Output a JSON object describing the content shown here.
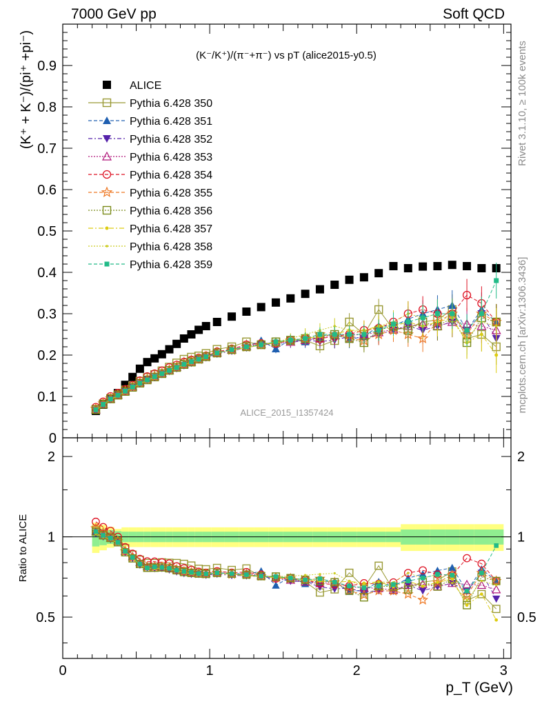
{
  "header": {
    "left": "7000 GeV pp",
    "right": "Soft QCD"
  },
  "side_labels": {
    "rivet": "Rivet 3.1.10, ≥ 100k events",
    "mcplots": "mcplots.cern.ch [arXiv:1306.3436]"
  },
  "chart_data": {
    "type": "scatter",
    "title": "(K⁻/K⁺)/(π⁻+π⁻) vs pT (alice2015-y0.5)",
    "watermark": "ALICE_2015_I1357424",
    "xlabel": "p_T (GeV)",
    "ylabel": "(K⁺ + K⁻)/(pi⁺ +pi⁻)",
    "ratio_ylabel": "Ratio to ALICE",
    "xlim": [
      0,
      3.05
    ],
    "ylim": [
      0,
      1.0
    ],
    "ratio_ylim": [
      0.35,
      2.35
    ],
    "x_ticks": [
      0,
      1,
      2,
      3
    ],
    "y_ticks": [
      0,
      0.1,
      0.2,
      0.3,
      0.4,
      0.5,
      0.6,
      0.7,
      0.8,
      0.9
    ],
    "ratio_ticks": [
      0.5,
      1,
      2
    ],
    "x": [
      0.225,
      0.275,
      0.325,
      0.375,
      0.425,
      0.475,
      0.525,
      0.575,
      0.625,
      0.675,
      0.725,
      0.775,
      0.825,
      0.875,
      0.925,
      0.975,
      1.05,
      1.15,
      1.25,
      1.35,
      1.45,
      1.55,
      1.65,
      1.75,
      1.85,
      1.95,
      2.05,
      2.15,
      2.25,
      2.35,
      2.45,
      2.55,
      2.65,
      2.75,
      2.85,
      2.95
    ],
    "series": [
      {
        "name": "ALICE",
        "values": [
          0.065,
          0.08,
          0.095,
          0.108,
          0.128,
          0.147,
          0.167,
          0.183,
          0.192,
          0.202,
          0.214,
          0.227,
          0.24,
          0.25,
          0.261,
          0.27,
          0.28,
          0.293,
          0.305,
          0.316,
          0.327,
          0.337,
          0.348,
          0.359,
          0.37,
          0.382,
          0.388,
          0.398,
          0.415,
          0.41,
          0.414,
          0.415,
          0.418,
          0.415,
          0.41,
          0.41
        ]
      },
      {
        "name": "Pythia 6.428 350",
        "values": [
          0.069,
          0.082,
          0.095,
          0.104,
          0.116,
          0.126,
          0.137,
          0.146,
          0.153,
          0.162,
          0.171,
          0.181,
          0.19,
          0.195,
          0.198,
          0.204,
          0.214,
          0.22,
          0.232,
          0.225,
          0.232,
          0.235,
          0.236,
          0.222,
          0.235,
          0.28,
          0.25,
          0.31,
          0.262,
          0.265,
          0.28,
          0.285,
          0.31,
          0.24,
          0.25,
          0.22
        ]
      },
      {
        "name": "Pythia 6.428 351",
        "values": [
          0.068,
          0.082,
          0.096,
          0.105,
          0.114,
          0.124,
          0.133,
          0.141,
          0.148,
          0.155,
          0.163,
          0.171,
          0.178,
          0.184,
          0.192,
          0.197,
          0.205,
          0.214,
          0.22,
          0.235,
          0.215,
          0.238,
          0.232,
          0.246,
          0.25,
          0.238,
          0.245,
          0.27,
          0.27,
          0.287,
          0.3,
          0.31,
          0.32,
          0.26,
          0.31,
          0.28
        ]
      },
      {
        "name": "Pythia 6.428 352",
        "values": [
          0.067,
          0.08,
          0.093,
          0.103,
          0.112,
          0.122,
          0.131,
          0.14,
          0.146,
          0.154,
          0.161,
          0.168,
          0.175,
          0.181,
          0.189,
          0.194,
          0.203,
          0.21,
          0.218,
          0.224,
          0.228,
          0.23,
          0.236,
          0.233,
          0.236,
          0.245,
          0.24,
          0.25,
          0.26,
          0.27,
          0.26,
          0.27,
          0.28,
          0.26,
          0.3,
          0.24
        ]
      },
      {
        "name": "Pythia 6.428 353",
        "values": [
          0.068,
          0.081,
          0.094,
          0.104,
          0.113,
          0.124,
          0.134,
          0.142,
          0.149,
          0.156,
          0.163,
          0.171,
          0.178,
          0.184,
          0.19,
          0.197,
          0.206,
          0.213,
          0.222,
          0.226,
          0.23,
          0.232,
          0.236,
          0.24,
          0.25,
          0.248,
          0.25,
          0.255,
          0.262,
          0.27,
          0.275,
          0.27,
          0.28,
          0.275,
          0.27,
          0.26
        ]
      },
      {
        "name": "Pythia 6.428 354",
        "values": [
          0.074,
          0.087,
          0.1,
          0.108,
          0.117,
          0.127,
          0.138,
          0.148,
          0.155,
          0.162,
          0.17,
          0.176,
          0.183,
          0.188,
          0.193,
          0.198,
          0.208,
          0.215,
          0.225,
          0.228,
          0.228,
          0.236,
          0.24,
          0.24,
          0.245,
          0.25,
          0.26,
          0.265,
          0.28,
          0.3,
          0.31,
          0.3,
          0.3,
          0.345,
          0.325,
          0.28
        ]
      },
      {
        "name": "Pythia 6.428 355",
        "values": [
          0.07,
          0.083,
          0.095,
          0.104,
          0.113,
          0.123,
          0.133,
          0.141,
          0.148,
          0.156,
          0.164,
          0.171,
          0.178,
          0.184,
          0.19,
          0.196,
          0.205,
          0.212,
          0.22,
          0.225,
          0.23,
          0.235,
          0.24,
          0.25,
          0.25,
          0.24,
          0.235,
          0.25,
          0.26,
          0.25,
          0.24,
          0.28,
          0.3,
          0.25,
          0.3,
          0.28
        ]
      },
      {
        "name": "Pythia 6.428 356",
        "values": [
          0.068,
          0.081,
          0.094,
          0.103,
          0.112,
          0.122,
          0.132,
          0.14,
          0.147,
          0.155,
          0.163,
          0.17,
          0.177,
          0.183,
          0.19,
          0.196,
          0.205,
          0.213,
          0.22,
          0.225,
          0.232,
          0.236,
          0.24,
          0.245,
          0.25,
          0.24,
          0.23,
          0.26,
          0.27,
          0.26,
          0.28,
          0.27,
          0.29,
          0.23,
          0.29,
          0.28
        ]
      },
      {
        "name": "Pythia 6.428 357",
        "values": [
          0.067,
          0.08,
          0.093,
          0.102,
          0.112,
          0.122,
          0.131,
          0.139,
          0.146,
          0.154,
          0.162,
          0.169,
          0.176,
          0.182,
          0.189,
          0.195,
          0.205,
          0.212,
          0.218,
          0.224,
          0.23,
          0.235,
          0.24,
          0.245,
          0.25,
          0.26,
          0.26,
          0.27,
          0.27,
          0.28,
          0.27,
          0.28,
          0.29,
          0.23,
          0.25,
          0.2
        ]
      },
      {
        "name": "Pythia 6.428 358",
        "values": [
          0.067,
          0.08,
          0.093,
          0.102,
          0.112,
          0.122,
          0.131,
          0.139,
          0.146,
          0.154,
          0.162,
          0.169,
          0.176,
          0.182,
          0.189,
          0.195,
          0.205,
          0.212,
          0.218,
          0.224,
          0.232,
          0.24,
          0.25,
          0.26,
          0.27,
          0.26,
          0.255,
          0.27,
          0.28,
          0.3,
          0.29,
          0.3,
          0.28,
          0.24,
          0.28,
          0.27
        ]
      },
      {
        "name": "Pythia 6.428 359",
        "values": [
          0.068,
          0.081,
          0.094,
          0.103,
          0.113,
          0.123,
          0.132,
          0.14,
          0.148,
          0.155,
          0.163,
          0.17,
          0.178,
          0.184,
          0.19,
          0.196,
          0.205,
          0.213,
          0.22,
          0.225,
          0.232,
          0.236,
          0.24,
          0.25,
          0.25,
          0.25,
          0.25,
          0.26,
          0.275,
          0.28,
          0.29,
          0.3,
          0.3,
          0.26,
          0.3,
          0.38
        ]
      }
    ],
    "legend": {
      "position": "top-left"
    },
    "grid": false,
    "ratio_band": {
      "inner_color": "#90ee90",
      "outer_color": "#ffff80"
    }
  }
}
